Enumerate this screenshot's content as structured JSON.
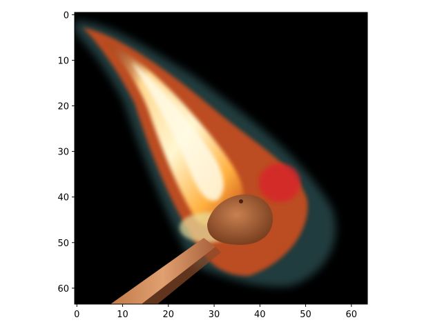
{
  "chart_data": {
    "type": "image",
    "image_size": [
      64,
      64
    ],
    "subject": "burning match",
    "xlim": [
      -0.5,
      63.5
    ],
    "ylim": [
      63.5,
      -0.5
    ],
    "x_ticks": [
      0,
      10,
      20,
      30,
      40,
      50,
      60
    ],
    "y_ticks": [
      0,
      10,
      20,
      30,
      40,
      50,
      60
    ],
    "x_tick_labels": [
      "0",
      "10",
      "20",
      "30",
      "40",
      "50",
      "60"
    ],
    "y_tick_labels": [
      "0",
      "10",
      "20",
      "30",
      "40",
      "50",
      "60"
    ],
    "title": "",
    "xlabel": "",
    "ylabel": "",
    "grid": false,
    "colors": {
      "background": "#000000",
      "flame_core": "#fff4c8",
      "flame_mid": "#ffb040",
      "flame_outer": "#e05a1a",
      "flame_red": "#d8262a",
      "glow_edge": "#4a7c80",
      "match_head": "#b06a3a",
      "match_stick": "#d08a5a"
    }
  }
}
